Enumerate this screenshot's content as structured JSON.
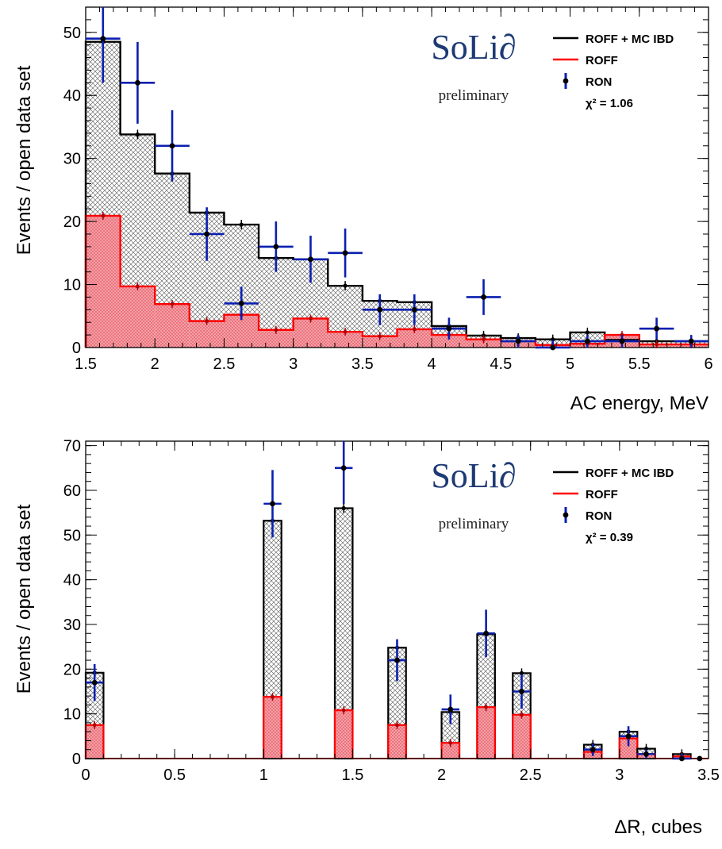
{
  "chart_data": [
    {
      "type": "histogram",
      "xlabel": "AC energy, MeV",
      "ylabel": "Events / open data set",
      "xlim": [
        1.5,
        6
      ],
      "ylim": [
        0,
        54
      ],
      "xticks": [
        "1.5",
        "2",
        "2.5",
        "3",
        "3.5",
        "4",
        "4.5",
        "5",
        "5.5",
        "6"
      ],
      "yticks": [
        "0",
        "10",
        "20",
        "30",
        "40",
        "50"
      ],
      "bin_edges": [
        1.5,
        1.75,
        2.0,
        2.25,
        2.5,
        2.75,
        3.0,
        3.25,
        3.5,
        3.75,
        4.0,
        4.25,
        4.5,
        4.75,
        5.0,
        5.25,
        5.5,
        5.75,
        6.0
      ],
      "series": [
        {
          "name": "ROFF + MC IBD",
          "kind": "stacked-step",
          "color": "#000000",
          "values": [
            48.5,
            33.8,
            27.6,
            21.4,
            19.5,
            14.2,
            14.0,
            9.8,
            7.4,
            7.2,
            3.4,
            1.9,
            1.5,
            1.3,
            2.4,
            1.2,
            1.0,
            1.0
          ]
        },
        {
          "name": "ROFF",
          "kind": "filled-step",
          "color": "#ff0000",
          "values": [
            20.9,
            9.7,
            6.9,
            4.2,
            5.2,
            2.8,
            4.6,
            2.5,
            1.8,
            2.9,
            2.0,
            1.3,
            1.0,
            0.4,
            0.6,
            2.0,
            0.5,
            0.5
          ]
        },
        {
          "name": "RON",
          "kind": "points",
          "color": "#0a1fb0",
          "x": [
            1.625,
            1.875,
            2.125,
            2.375,
            2.625,
            2.875,
            3.125,
            3.375,
            3.625,
            3.875,
            4.125,
            4.375,
            4.625,
            4.875,
            5.125,
            5.375,
            5.625,
            5.875
          ],
          "values": [
            49,
            42,
            32,
            18,
            7,
            16,
            14,
            15,
            6,
            6,
            3,
            8,
            1,
            0,
            1,
            1,
            3,
            1
          ]
        }
      ],
      "chi2_label": "χ² = 1.06",
      "legend_position": "top-right",
      "logo": "SoLi∂",
      "logo_sub": "preliminary",
      "legend": [
        "ROFF + MC IBD",
        "ROFF",
        "RON"
      ]
    },
    {
      "type": "histogram",
      "xlabel": "ΔR, cubes",
      "ylabel": "Events / open data set",
      "xlim": [
        0,
        3.5
      ],
      "ylim": [
        0,
        71
      ],
      "xticks": [
        "0",
        "0.5",
        "1",
        "1.5",
        "2",
        "2.5",
        "3",
        "3.5"
      ],
      "yticks": [
        "0",
        "10",
        "20",
        "30",
        "40",
        "50",
        "60",
        "70"
      ],
      "bins": [
        {
          "x0": 0.0,
          "x1": 0.1,
          "total": 19.2,
          "roff": 7.5,
          "ron": 17
        },
        {
          "x0": 1.0,
          "x1": 1.1,
          "total": 53.2,
          "roff": 13.8,
          "ron": 57
        },
        {
          "x0": 1.4,
          "x1": 1.5,
          "total": 56.0,
          "roff": 10.8,
          "ron": 65
        },
        {
          "x0": 1.7,
          "x1": 1.8,
          "total": 24.8,
          "roff": 7.5,
          "ron": 22
        },
        {
          "x0": 2.0,
          "x1": 2.1,
          "total": 10.4,
          "roff": 3.5,
          "ron": 11
        },
        {
          "x0": 2.2,
          "x1": 2.3,
          "total": 27.8,
          "roff": 11.5,
          "ron": 28
        },
        {
          "x0": 2.4,
          "x1": 2.5,
          "total": 19.1,
          "roff": 9.8,
          "ron": 15
        },
        {
          "x0": 2.8,
          "x1": 2.9,
          "total": 3.1,
          "roff": 1.5,
          "ron": 2
        },
        {
          "x0": 3.0,
          "x1": 3.1,
          "total": 6.0,
          "roff": 4.5,
          "ron": 5
        },
        {
          "x0": 3.1,
          "x1": 3.2,
          "total": 2.2,
          "roff": 1.0,
          "ron": 1
        },
        {
          "x0": 3.3,
          "x1": 3.4,
          "total": 1.0,
          "roff": 0.5,
          "ron": 0
        },
        {
          "x0": 3.4,
          "x1": 3.5,
          "total": 0.0,
          "roff": 0.0,
          "ron": 0
        }
      ],
      "series": [
        {
          "name": "ROFF + MC IBD",
          "color": "#000000"
        },
        {
          "name": "ROFF",
          "color": "#ff0000"
        },
        {
          "name": "RON",
          "color": "#0a1fb0"
        }
      ],
      "chi2_label": "χ² = 0.39",
      "legend_position": "top-right",
      "logo": "SoLi∂",
      "logo_sub": "preliminary",
      "legend": [
        "ROFF + MC IBD",
        "ROFF",
        "RON"
      ]
    }
  ]
}
